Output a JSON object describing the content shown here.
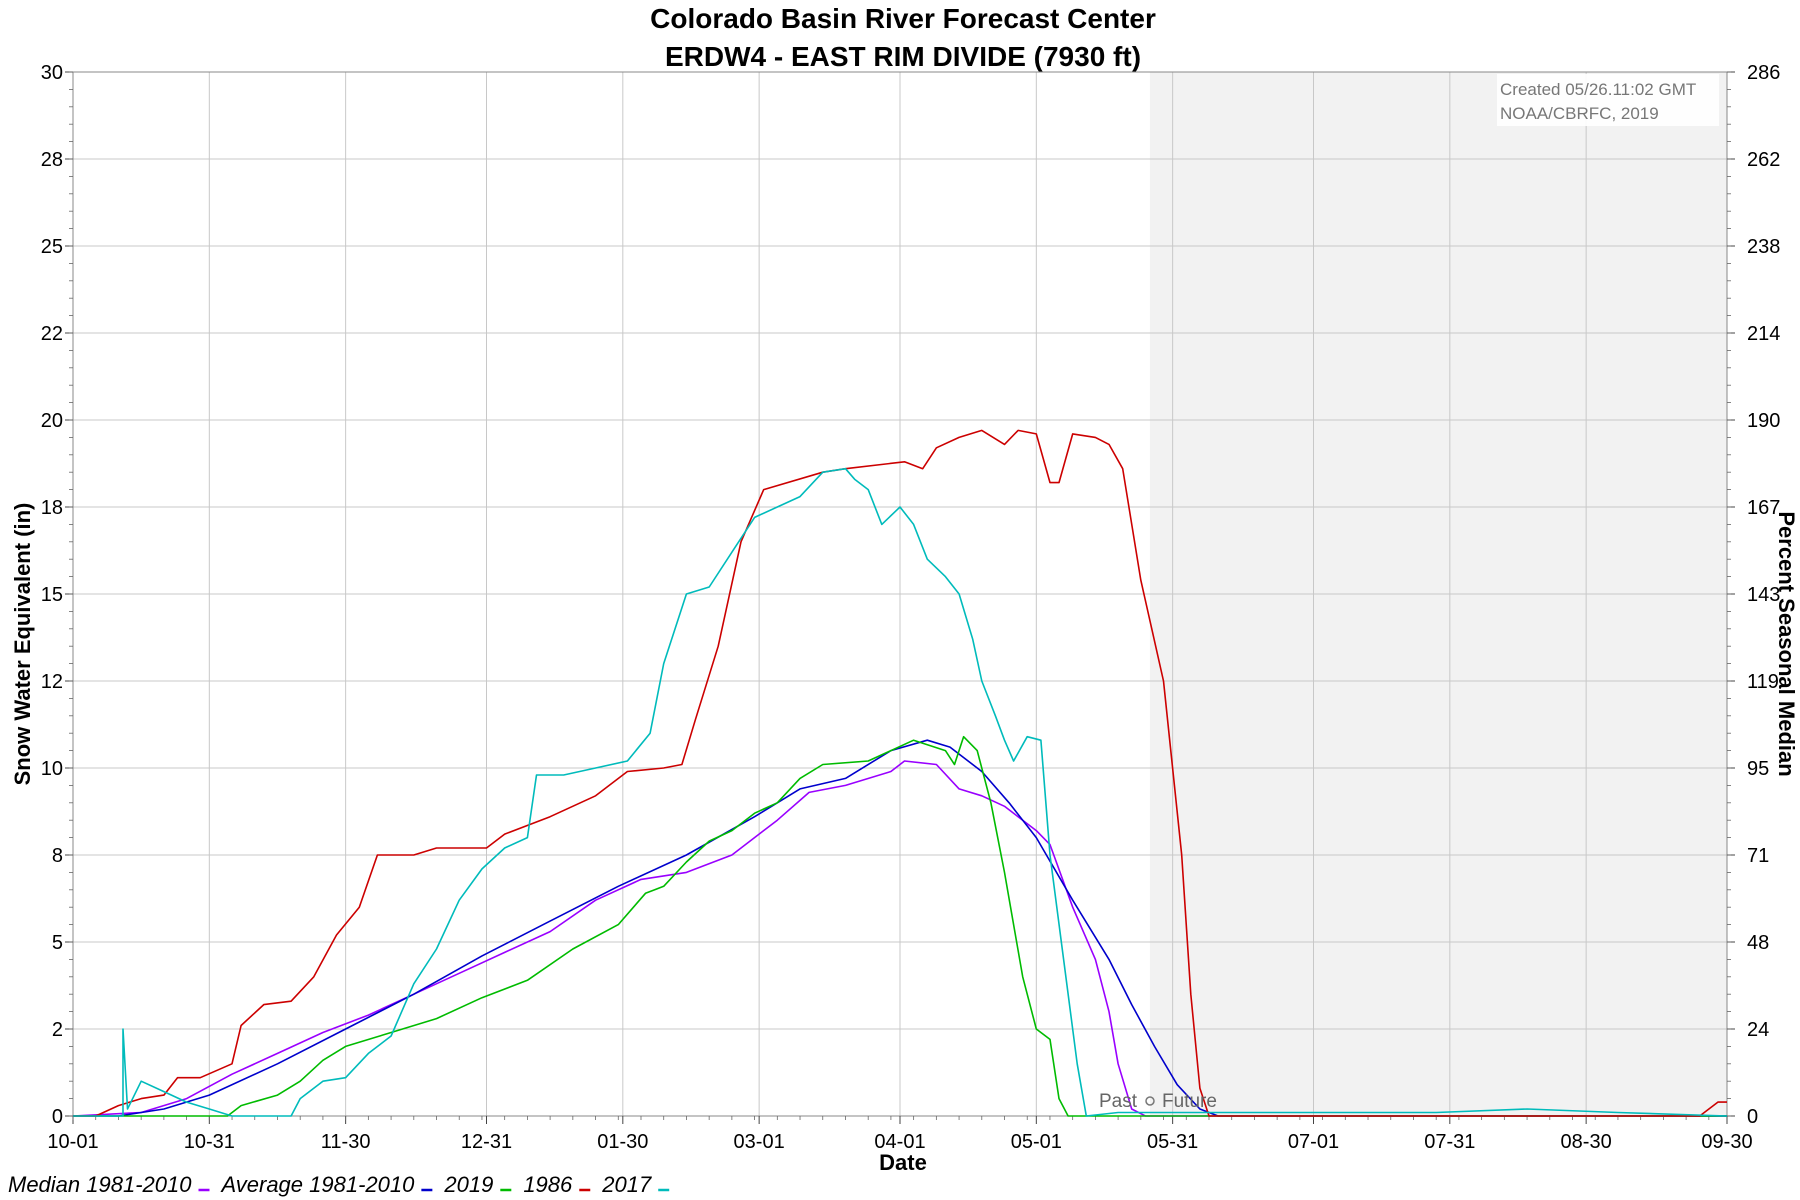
{
  "chart_data": {
    "type": "line",
    "title": "Colorado Basin River Forecast Center",
    "subtitle": "ERDW4 - EAST RIM DIVIDE (7930 ft)",
    "xlabel": "Date",
    "ylabel": "Snow Water Equivalent (in)",
    "y2label": "Percent Seasonal Median",
    "ylim": [
      0,
      30
    ],
    "y2lim": [
      0,
      286
    ],
    "x_ticks": [
      "10-01",
      "10-31",
      "11-30",
      "12-31",
      "01-30",
      "03-01",
      "04-01",
      "05-01",
      "05-31",
      "07-01",
      "07-31",
      "08-30",
      "09-30"
    ],
    "x_tick_days": [
      0,
      30,
      60,
      91,
      121,
      151,
      182,
      212,
      242,
      273,
      303,
      333,
      364
    ],
    "y_ticks": [
      0,
      2,
      5,
      8,
      10,
      12,
      15,
      18,
      20,
      22,
      25,
      28,
      30
    ],
    "y_tick_values": [
      0,
      2.5,
      5,
      7.5,
      10,
      12.5,
      15,
      17.5,
      20,
      22.5,
      25,
      27.5,
      30
    ],
    "y2_ticks": [
      0,
      24,
      48,
      71,
      95,
      119,
      143,
      167,
      190,
      214,
      238,
      262,
      286
    ],
    "grid": true,
    "legend_position": "bottom-left",
    "annotation": {
      "created": "Created 05/26.11:02 GMT",
      "source": "NOAA/CBRFC, 2019",
      "past_label": "Past",
      "future_label": "Future",
      "divider_day": 237
    },
    "series": [
      {
        "name": "Median 1981-2010",
        "color": "#9900ff",
        "points": [
          [
            0,
            0
          ],
          [
            15,
            0.1
          ],
          [
            25,
            0.5
          ],
          [
            35,
            1.2
          ],
          [
            45,
            1.8
          ],
          [
            55,
            2.4
          ],
          [
            65,
            2.9
          ],
          [
            75,
            3.5
          ],
          [
            85,
            4.1
          ],
          [
            95,
            4.7
          ],
          [
            105,
            5.3
          ],
          [
            115,
            6.2
          ],
          [
            125,
            6.8
          ],
          [
            135,
            7.0
          ],
          [
            145,
            7.5
          ],
          [
            155,
            8.5
          ],
          [
            162,
            9.3
          ],
          [
            170,
            9.5
          ],
          [
            180,
            9.9
          ],
          [
            183,
            10.2
          ],
          [
            190,
            10.1
          ],
          [
            195,
            9.4
          ],
          [
            200,
            9.2
          ],
          [
            205,
            8.9
          ],
          [
            208,
            8.6
          ],
          [
            212,
            8.2
          ],
          [
            215,
            7.8
          ],
          [
            220,
            6.0
          ],
          [
            225,
            4.5
          ],
          [
            228,
            3.0
          ],
          [
            230,
            1.5
          ],
          [
            233,
            0.2
          ],
          [
            236,
            0
          ],
          [
            243,
            0
          ],
          [
            364,
            0
          ]
        ]
      },
      {
        "name": "Average 1981-2010",
        "color": "#0000cc",
        "points": [
          [
            0,
            0
          ],
          [
            10,
            0
          ],
          [
            20,
            0.2
          ],
          [
            30,
            0.6
          ],
          [
            45,
            1.5
          ],
          [
            60,
            2.5
          ],
          [
            75,
            3.5
          ],
          [
            90,
            4.6
          ],
          [
            105,
            5.6
          ],
          [
            120,
            6.6
          ],
          [
            135,
            7.5
          ],
          [
            150,
            8.6
          ],
          [
            160,
            9.4
          ],
          [
            170,
            9.7
          ],
          [
            180,
            10.5
          ],
          [
            188,
            10.8
          ],
          [
            193,
            10.6
          ],
          [
            200,
            9.9
          ],
          [
            206,
            9.0
          ],
          [
            212,
            8.0
          ],
          [
            220,
            6.2
          ],
          [
            228,
            4.5
          ],
          [
            233,
            3.2
          ],
          [
            238,
            2.0
          ],
          [
            243,
            0.9
          ],
          [
            248,
            0.2
          ],
          [
            252,
            0
          ],
          [
            364,
            0
          ]
        ]
      },
      {
        "name": "2019",
        "color": "#00bb00",
        "points": [
          [
            0,
            0
          ],
          [
            34,
            0
          ],
          [
            37,
            0.3
          ],
          [
            45,
            0.6
          ],
          [
            50,
            1.0
          ],
          [
            55,
            1.6
          ],
          [
            60,
            2.0
          ],
          [
            70,
            2.4
          ],
          [
            80,
            2.8
          ],
          [
            90,
            3.4
          ],
          [
            100,
            3.9
          ],
          [
            110,
            4.8
          ],
          [
            120,
            5.5
          ],
          [
            126,
            6.4
          ],
          [
            130,
            6.6
          ],
          [
            135,
            7.3
          ],
          [
            140,
            7.9
          ],
          [
            145,
            8.2
          ],
          [
            150,
            8.7
          ],
          [
            155,
            9.0
          ],
          [
            160,
            9.7
          ],
          [
            165,
            10.1
          ],
          [
            175,
            10.2
          ],
          [
            185,
            10.8
          ],
          [
            192,
            10.5
          ],
          [
            194,
            10.1
          ],
          [
            196,
            10.9
          ],
          [
            199,
            10.5
          ],
          [
            202,
            9.0
          ],
          [
            205,
            7.0
          ],
          [
            207,
            5.5
          ],
          [
            209,
            4.0
          ],
          [
            212,
            2.5
          ],
          [
            215,
            2.2
          ],
          [
            217,
            0.5
          ],
          [
            219,
            0
          ],
          [
            364,
            0
          ]
        ]
      },
      {
        "name": "1986",
        "color": "#cc0000",
        "points": [
          [
            0,
            0
          ],
          [
            5,
            0
          ],
          [
            10,
            0.3
          ],
          [
            15,
            0.5
          ],
          [
            20,
            0.6
          ],
          [
            23,
            1.1
          ],
          [
            28,
            1.1
          ],
          [
            35,
            1.5
          ],
          [
            37,
            2.6
          ],
          [
            42,
            3.2
          ],
          [
            48,
            3.3
          ],
          [
            53,
            4.0
          ],
          [
            58,
            5.2
          ],
          [
            63,
            6.0
          ],
          [
            67,
            7.5
          ],
          [
            75,
            7.5
          ],
          [
            80,
            7.7
          ],
          [
            91,
            7.7
          ],
          [
            95,
            8.1
          ],
          [
            105,
            8.6
          ],
          [
            115,
            9.2
          ],
          [
            122,
            9.9
          ],
          [
            130,
            10.0
          ],
          [
            134,
            10.1
          ],
          [
            137,
            11.4
          ],
          [
            142,
            13.5
          ],
          [
            147,
            16.5
          ],
          [
            152,
            18.0
          ],
          [
            165,
            18.5
          ],
          [
            170,
            18.6
          ],
          [
            183,
            18.8
          ],
          [
            187,
            18.6
          ],
          [
            190,
            19.2
          ],
          [
            195,
            19.5
          ],
          [
            200,
            19.7
          ],
          [
            205,
            19.3
          ],
          [
            208,
            19.7
          ],
          [
            212,
            19.6
          ],
          [
            215,
            18.2
          ],
          [
            217,
            18.2
          ],
          [
            220,
            19.6
          ],
          [
            225,
            19.5
          ],
          [
            228,
            19.3
          ],
          [
            231,
            18.6
          ],
          [
            235,
            15.4
          ],
          [
            240,
            12.5
          ],
          [
            244,
            7.5
          ],
          [
            246,
            3.5
          ],
          [
            248,
            0.8
          ],
          [
            250,
            0
          ],
          [
            358,
            0
          ],
          [
            362,
            0.4
          ],
          [
            364,
            0.4
          ]
        ]
      },
      {
        "name": "2017",
        "color": "#00bbbb",
        "points": [
          [
            0,
            0
          ],
          [
            11,
            0
          ],
          [
            11,
            2.5
          ],
          [
            12,
            0.2
          ],
          [
            15,
            1.0
          ],
          [
            20,
            0.7
          ],
          [
            25,
            0.4
          ],
          [
            30,
            0.2
          ],
          [
            35,
            0
          ],
          [
            48,
            0
          ],
          [
            50,
            0.5
          ],
          [
            55,
            1.0
          ],
          [
            60,
            1.1
          ],
          [
            65,
            1.8
          ],
          [
            70,
            2.3
          ],
          [
            75,
            3.8
          ],
          [
            80,
            4.8
          ],
          [
            85,
            6.2
          ],
          [
            90,
            7.1
          ],
          [
            95,
            7.7
          ],
          [
            100,
            8.0
          ],
          [
            102,
            9.8
          ],
          [
            108,
            9.8
          ],
          [
            115,
            10.0
          ],
          [
            122,
            10.2
          ],
          [
            127,
            11.0
          ],
          [
            130,
            13.0
          ],
          [
            135,
            15.0
          ],
          [
            140,
            15.2
          ],
          [
            145,
            16.2
          ],
          [
            150,
            17.2
          ],
          [
            155,
            17.5
          ],
          [
            160,
            17.8
          ],
          [
            165,
            18.5
          ],
          [
            170,
            18.6
          ],
          [
            172,
            18.3
          ],
          [
            175,
            18.0
          ],
          [
            178,
            17.0
          ],
          [
            182,
            17.5
          ],
          [
            185,
            17.0
          ],
          [
            188,
            16.0
          ],
          [
            192,
            15.5
          ],
          [
            195,
            15.0
          ],
          [
            198,
            13.7
          ],
          [
            200,
            12.5
          ],
          [
            203,
            11.5
          ],
          [
            205,
            10.8
          ],
          [
            207,
            10.2
          ],
          [
            210,
            10.9
          ],
          [
            213,
            10.8
          ],
          [
            215,
            7.5
          ],
          [
            218,
            4.5
          ],
          [
            221,
            1.5
          ],
          [
            223,
            0
          ],
          [
            230,
            0.1
          ],
          [
            260,
            0.1
          ],
          [
            300,
            0.1
          ],
          [
            320,
            0.2
          ],
          [
            340,
            0.1
          ],
          [
            364,
            0
          ]
        ]
      }
    ]
  }
}
